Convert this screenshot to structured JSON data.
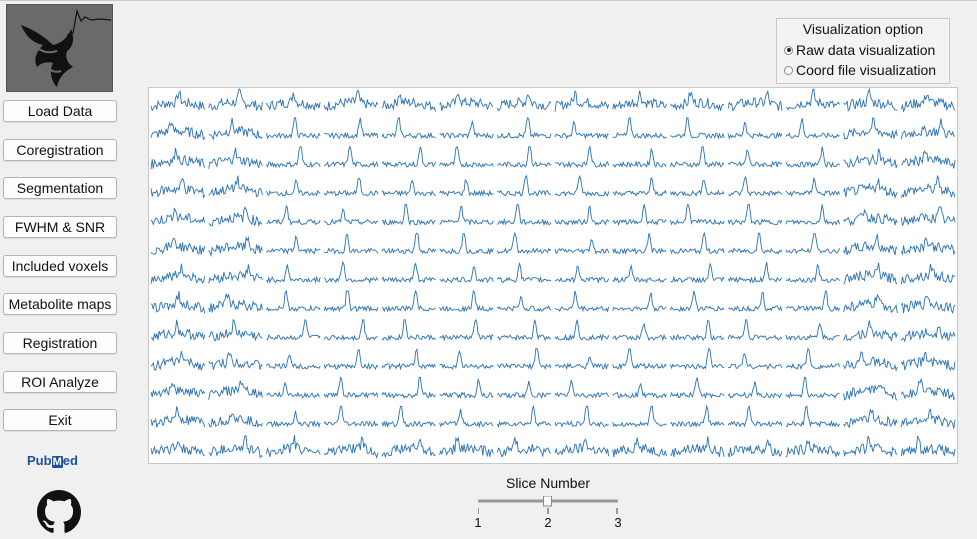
{
  "sidebar": {
    "buttons": [
      {
        "label": "Load Data"
      },
      {
        "label": "Coregistration"
      },
      {
        "label": "Segmentation"
      },
      {
        "label": "FWHM & SNR"
      },
      {
        "label": "Included voxels"
      },
      {
        "label": "Metabolite maps"
      },
      {
        "label": "Registration"
      },
      {
        "label": "ROI Analyze"
      },
      {
        "label": "Exit"
      }
    ],
    "pubmed_text_a": "Pub",
    "pubmed_text_b": "M",
    "pubmed_text_c": "ed"
  },
  "visualization": {
    "title": "Visualization option",
    "options": [
      {
        "label": "Raw data visualization",
        "selected": true
      },
      {
        "label": "Coord file visualization",
        "selected": false
      }
    ]
  },
  "spectra": {
    "rows": 13,
    "cols": 14,
    "line_color": "#2a72b5"
  },
  "slider": {
    "title": "Slice Number",
    "min": 1,
    "max": 3,
    "value": 2,
    "ticks": [
      "1",
      "2",
      "3"
    ]
  },
  "colors": {
    "accent": "#2a72b5",
    "pubmed": "#20529a"
  },
  "icons": [
    "app-logo-icon",
    "pubmed-logo-icon",
    "github-icon"
  ]
}
